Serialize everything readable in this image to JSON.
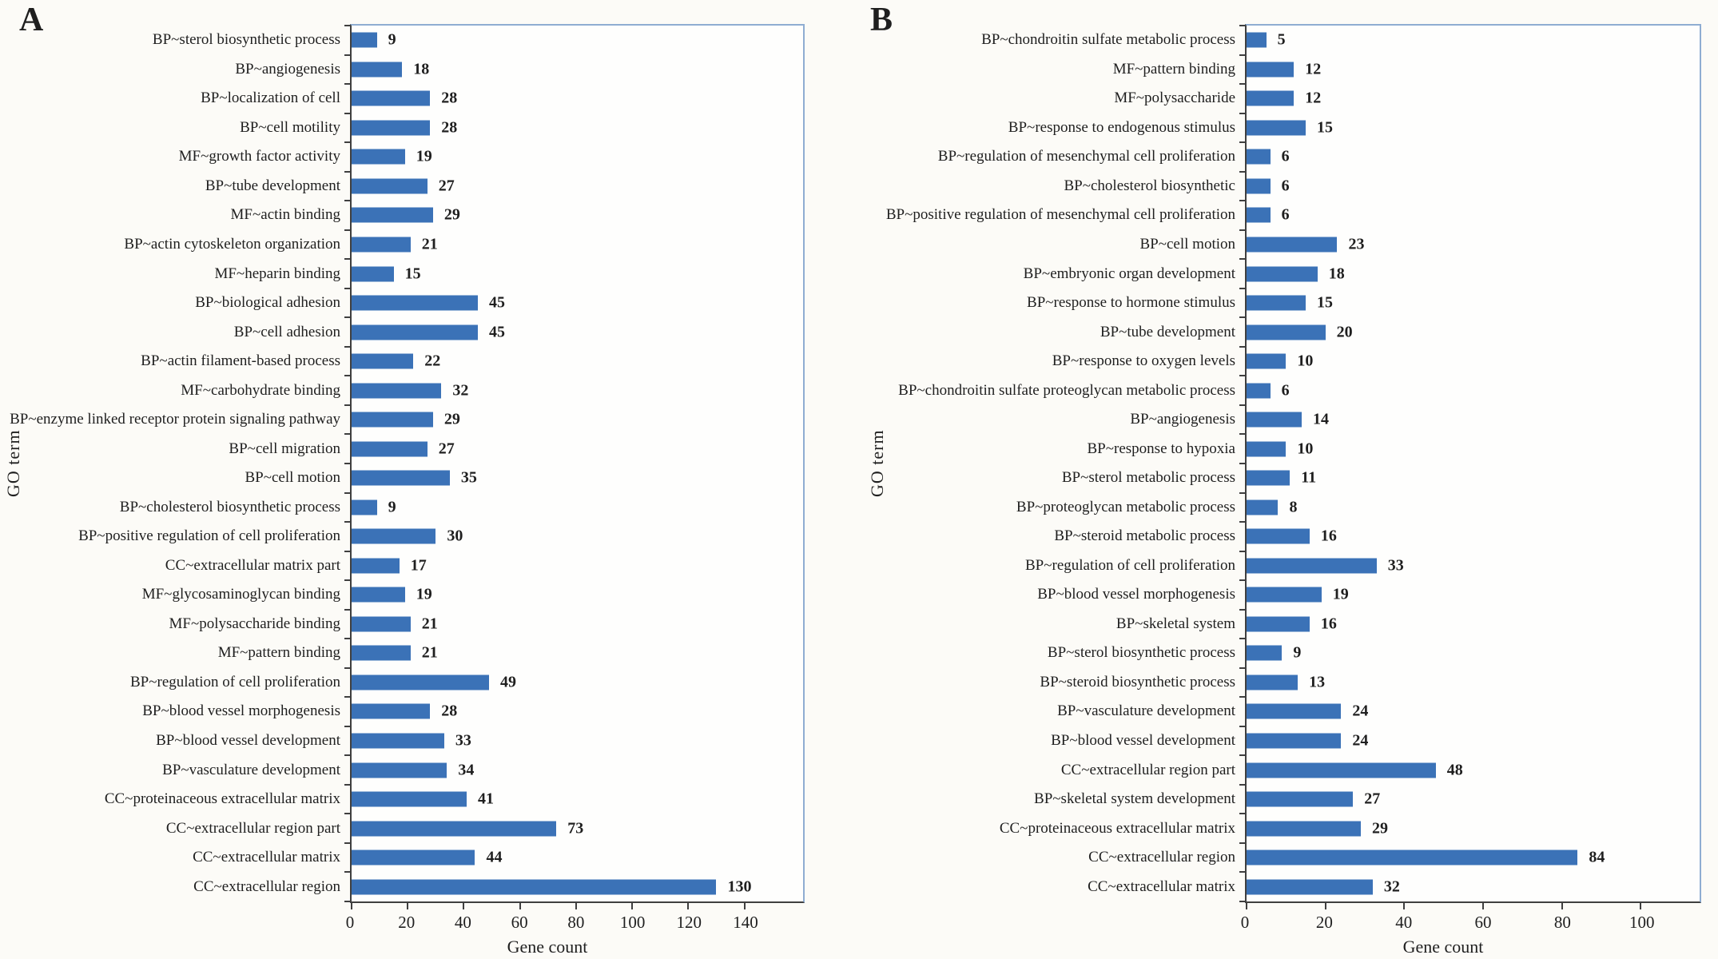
{
  "figure": {
    "background": "#fcfbf7",
    "bar_color": "#3b72b7",
    "frame_color": "#8fadd2",
    "axis_color": "#3f3f3f",
    "text_color": "#1f1f1f"
  },
  "chart_data": [
    {
      "type": "bar",
      "orientation": "horizontal",
      "panel_label": "A",
      "title": "",
      "xlabel": "Gene count",
      "ylabel": "GO term",
      "xlim": [
        0,
        140
      ],
      "xticks": [
        0,
        20,
        40,
        60,
        80,
        100,
        120,
        140
      ],
      "grid": false,
      "value_labels_shown": true,
      "categories": [
        "BP~sterol biosynthetic process",
        "BP~angiogenesis",
        "BP~localization of cell",
        "BP~cell motility",
        "MF~growth factor activity",
        "BP~tube development",
        "MF~actin binding",
        "BP~actin cytoskeleton organization",
        "MF~heparin binding",
        "BP~biological adhesion",
        "BP~cell adhesion",
        "BP~actin filament-based process",
        "MF~carbohydrate binding",
        "BP~enzyme linked receptor protein signaling pathway",
        "BP~cell migration",
        "BP~cell motion",
        "BP~cholesterol biosynthetic process",
        "BP~positive regulation of cell proliferation",
        "CC~extracellular matrix part",
        "MF~glycosaminoglycan binding",
        "MF~polysaccharide binding",
        "MF~pattern binding",
        "BP~regulation of cell proliferation",
        "BP~blood vessel morphogenesis",
        "BP~blood vessel development",
        "BP~vasculature development",
        "CC~proteinaceous extracellular matrix",
        "CC~extracellular region part",
        "CC~extracellular matrix",
        "CC~extracellular region"
      ],
      "values": [
        9,
        18,
        28,
        28,
        19,
        27,
        29,
        21,
        15,
        45,
        45,
        22,
        32,
        29,
        27,
        35,
        9,
        30,
        17,
        19,
        21,
        21,
        49,
        28,
        33,
        34,
        41,
        73,
        44,
        130
      ]
    },
    {
      "type": "bar",
      "orientation": "horizontal",
      "panel_label": "B",
      "title": "",
      "xlabel": "Gene count",
      "ylabel": "GO term",
      "xlim": [
        0,
        100
      ],
      "xticks": [
        0,
        20,
        40,
        60,
        80,
        100
      ],
      "grid": false,
      "value_labels_shown": true,
      "categories": [
        "BP~chondroitin sulfate metabolic process",
        "MF~pattern binding",
        "MF~polysaccharide",
        "BP~response to endogenous stimulus",
        "BP~regulation of mesenchymal cell proliferation",
        "BP~cholesterol biosynthetic",
        "BP~positive regulation of mesenchymal cell proliferation",
        "BP~cell motion",
        "BP~embryonic organ development",
        "BP~response to hormone stimulus",
        "BP~tube development",
        "BP~response to oxygen levels",
        "BP~chondroitin sulfate proteoglycan metabolic process",
        "BP~angiogenesis",
        "BP~response to hypoxia",
        "BP~sterol metabolic process",
        "BP~proteoglycan metabolic process",
        "BP~steroid metabolic process",
        "BP~regulation of cell proliferation",
        "BP~blood vessel morphogenesis",
        "BP~skeletal system",
        "BP~sterol biosynthetic process",
        "BP~steroid biosynthetic process",
        "BP~vasculature development",
        "BP~blood vessel development",
        "CC~extracellular region part",
        "BP~skeletal system development",
        "CC~proteinaceous extracellular matrix",
        "CC~extracellular region",
        "CC~extracellular matrix"
      ],
      "values": [
        5,
        12,
        12,
        15,
        6,
        6,
        6,
        23,
        18,
        15,
        20,
        10,
        6,
        14,
        10,
        11,
        8,
        16,
        33,
        19,
        16,
        9,
        13,
        24,
        24,
        48,
        27,
        29,
        84,
        32
      ]
    }
  ]
}
